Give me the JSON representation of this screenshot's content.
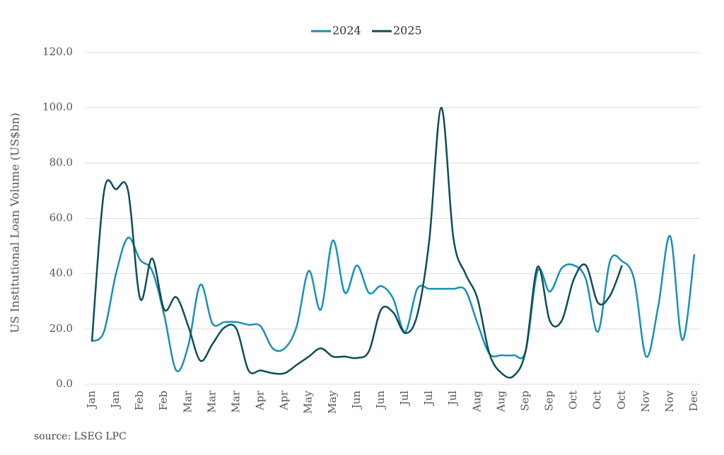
{
  "chart_data": {
    "type": "line",
    "ylabel": "US Institutional Loan Volume (US$bn)",
    "source": "source:  LSEG LPC",
    "categories": [
      "Jan",
      null,
      "Jan",
      null,
      "Feb",
      null,
      "Feb",
      null,
      "Mar",
      null,
      "Mar",
      null,
      "Mar",
      null,
      "Apr",
      null,
      "Apr",
      null,
      "May",
      null,
      "May",
      null,
      "Jun",
      null,
      "Jun",
      null,
      "Jul",
      null,
      "Jul",
      null,
      "Jul",
      null,
      "Aug",
      null,
      "Aug",
      null,
      "Sep",
      null,
      "Sep",
      null,
      "Oct",
      null,
      "Oct",
      null,
      "Oct",
      null,
      "Nov",
      null,
      "Nov",
      null,
      "Dec"
    ],
    "series": [
      {
        "name": "2024",
        "color": "#1a8fb5",
        "values": [
          15.5,
          19,
          40,
          53,
          45,
          41,
          25,
          5,
          14,
          36,
          22,
          22.5,
          22.5,
          21.5,
          21,
          13,
          13,
          21,
          41,
          27,
          52,
          33,
          43,
          33,
          35.5,
          31,
          19,
          34.5,
          34.5,
          34.5,
          34.5,
          34,
          22,
          11,
          10.5,
          10.5,
          12,
          41,
          33.5,
          42,
          43,
          38,
          19,
          44.5,
          44.5,
          38,
          10,
          28,
          53.5,
          16,
          47
        ]
      },
      {
        "name": "2025",
        "color": "#0e4d57",
        "values": [
          15.5,
          69.5,
          70.5,
          70,
          31,
          45.5,
          27,
          31.5,
          21,
          8.5,
          14.5,
          20.5,
          20,
          5,
          5,
          4,
          4,
          7,
          10,
          13,
          10,
          10,
          9.5,
          12,
          27,
          26,
          18.5,
          25,
          52,
          100,
          53,
          40,
          31,
          11,
          4,
          3,
          12,
          42.5,
          23,
          23,
          38,
          43,
          29.5,
          32,
          43,
          null,
          null,
          null,
          null,
          null,
          null
        ]
      }
    ],
    "ylim": [
      0,
      120
    ],
    "yticks": [
      {
        "value": 0,
        "label": "0.0"
      },
      {
        "value": 20,
        "label": "20.0"
      },
      {
        "value": 40,
        "label": "40.0"
      },
      {
        "value": 60,
        "label": "60.0"
      },
      {
        "value": 80,
        "label": "80.0"
      },
      {
        "value": 100,
        "label": "100.0"
      },
      {
        "value": 120,
        "label": "120.0"
      }
    ],
    "grid": true,
    "legend": "top"
  }
}
